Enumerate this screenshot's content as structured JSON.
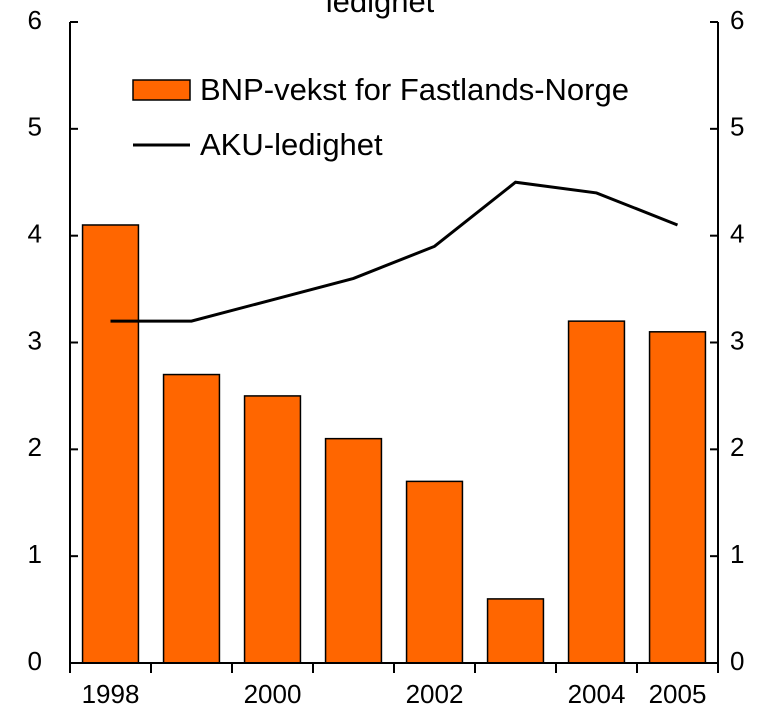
{
  "chart_data": {
    "type": "bar",
    "title": "ledighet",
    "categories": [
      "1998",
      null,
      "2000",
      null,
      "2002",
      null,
      "2004",
      "2005"
    ],
    "series": [
      {
        "name": "BNP-vekst for Fastlands-Norge",
        "type": "bar",
        "color": "#ff6600",
        "values": [
          4.1,
          2.7,
          2.5,
          2.1,
          1.7,
          0.6,
          3.2,
          3.1
        ]
      },
      {
        "name": "AKU-ledighet",
        "type": "line",
        "axis": "y2",
        "color": "#000000",
        "values": [
          3.2,
          3.2,
          3.4,
          3.6,
          3.9,
          4.5,
          4.4,
          4.1
        ]
      }
    ],
    "ylim": [
      0,
      6
    ],
    "yticks": [
      0,
      1,
      2,
      3,
      4,
      5,
      6
    ],
    "y2lim": [
      0,
      6
    ],
    "y2ticks": [
      0,
      1,
      2,
      3,
      4,
      5,
      6
    ],
    "legend": "upper left",
    "grid": false
  }
}
